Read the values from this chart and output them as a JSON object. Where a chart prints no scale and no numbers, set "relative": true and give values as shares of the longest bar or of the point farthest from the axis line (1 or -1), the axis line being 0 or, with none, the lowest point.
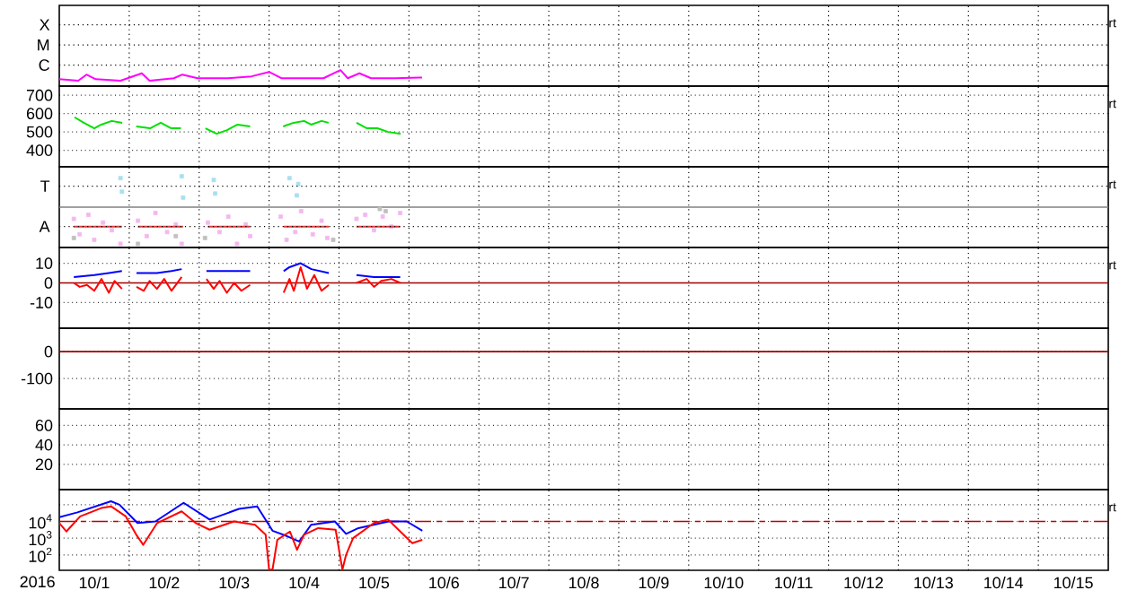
{
  "chart_data": [
    {
      "type": "line",
      "relative": true,
      "grid": true,
      "tick_labels": false,
      "annotations": [
        "X",
        "M",
        "C",
        "rt"
      ],
      "xlim": [
        "2016-10-01T00:00",
        "2016-10-16T00:00"
      ],
      "xticks": [
        {
          "value": "2016-10-02T00:00",
          "label": null
        },
        {
          "value": "2016-10-03T00:00",
          "label": null
        },
        {
          "value": "2016-10-04T00:00",
          "label": null
        },
        {
          "value": "2016-10-05T00:00",
          "label": null
        },
        {
          "value": "2016-10-06T00:00",
          "label": null
        },
        {
          "value": "2016-10-07T00:00",
          "label": null
        },
        {
          "value": "2016-10-08T00:00",
          "label": null
        },
        {
          "value": "2016-10-09T00:00",
          "label": null
        },
        {
          "value": "2016-10-10T00:00",
          "label": null
        },
        {
          "value": "2016-10-11T00:00",
          "label": null
        },
        {
          "value": "2016-10-12T00:00",
          "label": null
        },
        {
          "value": "2016-10-13T00:00",
          "label": null
        },
        {
          "value": "2016-10-14T00:00",
          "label": null
        },
        {
          "value": "2016-10-15T00:00",
          "label": null
        }
      ],
      "series": [
        {
          "color": "#ff00ff",
          "x": [
            "2016-10-01T00:00",
            "2016-10-01T06:30",
            "2016-10-01T09:20",
            "2016-10-01T12:30",
            "2016-10-01T21:00",
            "2016-10-02T04:20",
            "2016-10-02T07:00",
            "2016-10-02T15:20",
            "2016-10-02T18:15",
            "2016-10-02T23:30",
            "2016-10-03T09:50",
            "2016-10-03T18:00",
            "2016-10-04T00:00",
            "2016-10-04T04:20",
            "2016-10-04T10:20",
            "2016-10-04T18:40",
            "2016-10-05T00:30",
            "2016-10-05T03:00",
            "2016-10-05T07:00",
            "2016-10-05T11:00",
            "2016-10-05T19:00",
            "2016-10-06T03:40",
            "2016-10-06T04:30"
          ],
          "values": [
            0.43,
            0.34,
            0.72,
            0.43,
            0.34,
            0.8,
            0.34,
            0.49,
            0.72,
            0.49,
            0.49,
            0.61,
            0.89,
            0.49,
            0.49,
            0.49,
            1,
            0.49,
            0.8,
            0.49,
            0.49,
            0.54,
            0.54
          ]
        }
      ]
    },
    {
      "type": "line",
      "grid": true,
      "tick_labels": "y",
      "annotations": [
        "rt"
      ],
      "xlim": [
        "2016-10-01T00:00",
        "2016-10-16T00:00"
      ],
      "xticks": [
        {
          "value": "2016-10-02T00:00",
          "label": null
        },
        {
          "value": "2016-10-03T00:00",
          "label": null
        },
        {
          "value": "2016-10-04T00:00",
          "label": null
        },
        {
          "value": "2016-10-05T00:00",
          "label": null
        },
        {
          "value": "2016-10-06T00:00",
          "label": null
        },
        {
          "value": "2016-10-07T00:00",
          "label": null
        },
        {
          "value": "2016-10-08T00:00",
          "label": null
        },
        {
          "value": "2016-10-09T00:00",
          "label": null
        },
        {
          "value": "2016-10-10T00:00",
          "label": null
        },
        {
          "value": "2016-10-11T00:00",
          "label": null
        },
        {
          "value": "2016-10-12T00:00",
          "label": null
        },
        {
          "value": "2016-10-13T00:00",
          "label": null
        },
        {
          "value": "2016-10-14T00:00",
          "label": null
        },
        {
          "value": "2016-10-15T00:00",
          "label": null
        }
      ],
      "ylim": [
        310,
        750
      ],
      "yticks": [
        400,
        500,
        600,
        700
      ],
      "series": [
        {
          "color": "#00e000",
          "x": [
            "2016-10-01T05:15",
            "2016-10-01T08:25",
            "2016-10-01T12:00",
            "2016-10-01T14:25",
            "2016-10-01T18:00",
            "2016-10-01T21:35",
            "2016-10-02T00:00",
            "2016-10-02T02:25",
            "2016-10-02T07:10",
            "2016-10-02T10:50",
            "2016-10-02T14:25",
            "2016-10-02T17:45",
            "2016-10-02T22:00",
            "2016-10-03T02:10",
            "2016-10-03T06:00",
            "2016-10-03T09:35",
            "2016-10-03T13:10",
            "2016-10-03T17:30",
            "2016-10-04T00:00",
            "2016-10-04T04:50",
            "2016-10-04T08:25",
            "2016-10-04T12:00",
            "2016-10-04T14:25",
            "2016-10-04T18:00",
            "2016-10-04T20:25",
            "2016-10-05T02:00",
            "2016-10-05T06:00",
            "2016-10-05T09:35",
            "2016-10-05T13:10",
            "2016-10-05T16:50",
            "2016-10-05T21:10"
          ],
          "values": [
            580,
            550,
            520,
            540,
            560,
            550,
            null,
            530,
            520,
            550,
            520,
            520,
            null,
            520,
            490,
            510,
            540,
            530,
            null,
            530,
            550,
            560,
            540,
            560,
            550,
            null,
            550,
            520,
            520,
            500,
            490
          ]
        }
      ]
    },
    {
      "type": "scatter",
      "relative": true,
      "grid": true,
      "tick_labels": false,
      "annotations": [
        "T",
        "A",
        "rt"
      ],
      "xlim": [
        "2016-10-01T00:00",
        "2016-10-16T00:00"
      ],
      "xticks": [
        {
          "value": "2016-10-02T00:00",
          "label": null
        },
        {
          "value": "2016-10-03T00:00",
          "label": null
        },
        {
          "value": "2016-10-04T00:00",
          "label": null
        },
        {
          "value": "2016-10-05T00:00",
          "label": null
        },
        {
          "value": "2016-10-06T00:00",
          "label": null
        },
        {
          "value": "2016-10-07T00:00",
          "label": null
        },
        {
          "value": "2016-10-08T00:00",
          "label": null
        },
        {
          "value": "2016-10-09T00:00",
          "label": null
        },
        {
          "value": "2016-10-10T00:00",
          "label": null
        },
        {
          "value": "2016-10-11T00:00",
          "label": null
        },
        {
          "value": "2016-10-12T00:00",
          "label": null
        },
        {
          "value": "2016-10-13T00:00",
          "label": null
        },
        {
          "value": "2016-10-14T00:00",
          "label": null
        },
        {
          "value": "2016-10-15T00:00",
          "label": null
        }
      ],
      "ref_lines": [
        {
          "axis": "y",
          "value": 0,
          "color": "#808080"
        }
      ],
      "series": [
        {
          "color": "#f4b8f0",
          "x": [
            "2016-10-01T05:00",
            "2016-10-01T07:00",
            "2016-10-01T10:00",
            "2016-10-01T12:00",
            "2016-10-01T15:00",
            "2016-10-01T18:00",
            "2016-10-01T21:00",
            "2016-10-02T03:00",
            "2016-10-02T06:00",
            "2016-10-02T09:00",
            "2016-10-02T13:00",
            "2016-10-02T16:00",
            "2016-10-02T18:00",
            "2016-10-03T03:00",
            "2016-10-03T07:00",
            "2016-10-03T10:00",
            "2016-10-03T13:00",
            "2016-10-03T16:00",
            "2016-10-03T17:30",
            "2016-10-04T04:00",
            "2016-10-04T06:00",
            "2016-10-04T09:00",
            "2016-10-04T11:00",
            "2016-10-04T15:00",
            "2016-10-04T18:00",
            "2016-10-04T20:00",
            "2016-10-05T06:00",
            "2016-10-05T09:00",
            "2016-10-05T12:00",
            "2016-10-05T15:00",
            "2016-10-05T18:00",
            "2016-10-05T21:00"
          ],
          "values": [
            -0.32,
            -0.74,
            -0.21,
            -0.89,
            -0.42,
            -0.63,
            -1,
            -0.37,
            -0.79,
            -0.16,
            -0.68,
            -0.47,
            -1,
            -0.42,
            -0.68,
            -0.26,
            -1,
            -0.47,
            -0.79,
            -0.26,
            -0.89,
            -0.68,
            -0.11,
            -0.74,
            -0.37,
            -0.84,
            -0.32,
            -0.21,
            -0.63,
            -0.26,
            -0.53,
            -0.16
          ]
        },
        {
          "color": "#a8e0f0",
          "x": [
            "2016-10-01T21:00",
            "2016-10-01T21:30",
            "2016-10-02T18:00",
            "2016-10-02T18:30",
            "2016-10-03T05:00",
            "2016-10-03T05:30",
            "2016-10-04T07:00",
            "2016-10-04T09:30",
            "2016-10-04T10:00"
          ],
          "values": [
            0.79,
            0.42,
            0.84,
            0.26,
            0.74,
            0.37,
            0.79,
            0.32,
            0.63
          ]
        },
        {
          "color": "#c0c0c0",
          "x": [
            "2016-10-01T05:00",
            "2016-10-02T03:00",
            "2016-10-02T16:00",
            "2016-10-03T02:00",
            "2016-10-04T22:00",
            "2016-10-05T14:00",
            "2016-10-05T16:00"
          ],
          "values": [
            -0.84,
            -1,
            -0.79,
            -0.84,
            -0.89,
            -0.05,
            -0.11
          ]
        },
        {
          "type": "line",
          "color": "#e04040",
          "x": [
            "2016-10-01T05:00",
            "2016-10-01T21:30",
            "2016-10-02T00:00",
            "2016-10-02T03:00",
            "2016-10-02T18:30",
            "2016-10-03T00:00",
            "2016-10-03T03:00",
            "2016-10-03T17:30",
            "2016-10-04T00:00",
            "2016-10-04T05:00",
            "2016-10-04T20:30",
            "2016-10-05T02:00",
            "2016-10-05T06:00",
            "2016-10-05T21:00"
          ],
          "values": [
            -0.53,
            -0.53,
            null,
            -0.53,
            -0.53,
            null,
            -0.53,
            -0.53,
            null,
            -0.53,
            -0.53,
            null,
            -0.53,
            -0.53
          ]
        }
      ]
    },
    {
      "type": "line",
      "grid": true,
      "tick_labels": "y",
      "annotations": [
        "rt"
      ],
      "xlim": [
        "2016-10-01T00:00",
        "2016-10-16T00:00"
      ],
      "xticks": [
        {
          "value": "2016-10-02T00:00",
          "label": null
        },
        {
          "value": "2016-10-03T00:00",
          "label": null
        },
        {
          "value": "2016-10-04T00:00",
          "label": null
        },
        {
          "value": "2016-10-05T00:00",
          "label": null
        },
        {
          "value": "2016-10-06T00:00",
          "label": null
        },
        {
          "value": "2016-10-07T00:00",
          "label": null
        },
        {
          "value": "2016-10-08T00:00",
          "label": null
        },
        {
          "value": "2016-10-09T00:00",
          "label": null
        },
        {
          "value": "2016-10-10T00:00",
          "label": null
        },
        {
          "value": "2016-10-11T00:00",
          "label": null
        },
        {
          "value": "2016-10-12T00:00",
          "label": null
        },
        {
          "value": "2016-10-13T00:00",
          "label": null
        },
        {
          "value": "2016-10-14T00:00",
          "label": null
        },
        {
          "value": "2016-10-15T00:00",
          "label": null
        }
      ],
      "ylim": [
        -23,
        18
      ],
      "yticks": [
        -10,
        0,
        10
      ],
      "ref_lines": [
        {
          "axis": "y",
          "value": 0,
          "color": "#a00000"
        }
      ],
      "series": [
        {
          "color": "#0000ff",
          "x": [
            "2016-10-01T05:00",
            "2016-10-01T12:00",
            "2016-10-01T17:00",
            "2016-10-01T21:30",
            "2016-10-02T00:00",
            "2016-10-02T02:30",
            "2016-10-02T09:30",
            "2016-10-02T14:30",
            "2016-10-02T18:00",
            "2016-10-02T22:00",
            "2016-10-03T02:30",
            "2016-10-03T09:30",
            "2016-10-03T17:30",
            "2016-10-04T00:00",
            "2016-10-04T05:00",
            "2016-10-04T07:00",
            "2016-10-04T10:50",
            "2016-10-04T14:30",
            "2016-10-04T20:30",
            "2016-10-05T02:00",
            "2016-10-05T06:00",
            "2016-10-05T12:00",
            "2016-10-05T21:00"
          ],
          "values": [
            3,
            4,
            5,
            6,
            null,
            5,
            5,
            6,
            7,
            null,
            6,
            6,
            6,
            null,
            6,
            8,
            10,
            7,
            5,
            null,
            4,
            3,
            3
          ]
        },
        {
          "color": "#ff0000",
          "x": [
            "2016-10-01T05:00",
            "2016-10-01T07:00",
            "2016-10-01T09:30",
            "2016-10-01T12:00",
            "2016-10-01T14:30",
            "2016-10-01T17:00",
            "2016-10-01T19:00",
            "2016-10-01T21:30",
            "2016-10-02T00:00",
            "2016-10-02T02:30",
            "2016-10-02T05:00",
            "2016-10-02T07:00",
            "2016-10-02T09:30",
            "2016-10-02T12:00",
            "2016-10-02T14:30",
            "2016-10-02T18:00",
            "2016-10-02T22:00",
            "2016-10-03T02:30",
            "2016-10-03T05:00",
            "2016-10-03T07:00",
            "2016-10-03T09:30",
            "2016-10-03T12:00",
            "2016-10-03T14:30",
            "2016-10-03T17:30",
            "2016-10-04T00:00",
            "2016-10-04T05:00",
            "2016-10-04T07:00",
            "2016-10-04T08:30",
            "2016-10-04T10:50",
            "2016-10-04T13:00",
            "2016-10-04T15:30",
            "2016-10-04T18:00",
            "2016-10-04T20:30",
            "2016-10-05T02:00",
            "2016-10-05T06:00",
            "2016-10-05T09:30",
            "2016-10-05T12:00",
            "2016-10-05T14:30",
            "2016-10-05T18:00",
            "2016-10-05T21:00"
          ],
          "values": [
            0,
            -2,
            -1,
            -4,
            2,
            -5,
            1,
            -3,
            null,
            -2,
            -4,
            1,
            -3,
            2,
            -4,
            3,
            null,
            2,
            -3,
            1,
            -5,
            0,
            -4,
            -1,
            null,
            -5,
            2,
            -4,
            8,
            -3,
            4,
            -4,
            -1,
            null,
            0,
            2,
            -2,
            1,
            2,
            0
          ]
        }
      ]
    },
    {
      "type": "line",
      "grid": true,
      "tick_labels": "y",
      "xlim": [
        "2016-10-01T00:00",
        "2016-10-16T00:00"
      ],
      "xticks": [
        {
          "value": "2016-10-02T00:00",
          "label": null
        },
        {
          "value": "2016-10-03T00:00",
          "label": null
        },
        {
          "value": "2016-10-04T00:00",
          "label": null
        },
        {
          "value": "2016-10-05T00:00",
          "label": null
        },
        {
          "value": "2016-10-06T00:00",
          "label": null
        },
        {
          "value": "2016-10-07T00:00",
          "label": null
        },
        {
          "value": "2016-10-08T00:00",
          "label": null
        },
        {
          "value": "2016-10-09T00:00",
          "label": null
        },
        {
          "value": "2016-10-10T00:00",
          "label": null
        },
        {
          "value": "2016-10-11T00:00",
          "label": null
        },
        {
          "value": "2016-10-12T00:00",
          "label": null
        },
        {
          "value": "2016-10-13T00:00",
          "label": null
        },
        {
          "value": "2016-10-14T00:00",
          "label": null
        },
        {
          "value": "2016-10-15T00:00",
          "label": null
        }
      ],
      "ylim": [
        -213,
        87
      ],
      "yticks": [
        -100,
        0
      ],
      "ref_lines": [
        {
          "axis": "y",
          "value": 0,
          "color": "#a00000"
        }
      ]
    },
    {
      "type": "line",
      "grid": true,
      "tick_labels": "y",
      "xlim": [
        "2016-10-01T00:00",
        "2016-10-16T00:00"
      ],
      "xticks": [
        {
          "value": "2016-10-02T00:00",
          "label": null
        },
        {
          "value": "2016-10-03T00:00",
          "label": null
        },
        {
          "value": "2016-10-04T00:00",
          "label": null
        },
        {
          "value": "2016-10-05T00:00",
          "label": null
        },
        {
          "value": "2016-10-06T00:00",
          "label": null
        },
        {
          "value": "2016-10-07T00:00",
          "label": null
        },
        {
          "value": "2016-10-08T00:00",
          "label": null
        },
        {
          "value": "2016-10-09T00:00",
          "label": null
        },
        {
          "value": "2016-10-10T00:00",
          "label": null
        },
        {
          "value": "2016-10-11T00:00",
          "label": null
        },
        {
          "value": "2016-10-12T00:00",
          "label": null
        },
        {
          "value": "2016-10-13T00:00",
          "label": null
        },
        {
          "value": "2016-10-14T00:00",
          "label": null
        },
        {
          "value": "2016-10-15T00:00",
          "label": null
        }
      ],
      "ylim": [
        -6,
        77
      ],
      "yticks": [
        20,
        40,
        60
      ]
    },
    {
      "type": "line",
      "log": "y",
      "grid": true,
      "annotations": [
        "rt"
      ],
      "xlabel": "2016",
      "xlim": [
        "2016-10-01T00:00",
        "2016-10-16T00:00"
      ],
      "xticks": [
        {
          "value": "2016-10-01T12:00",
          "label": "10/1"
        },
        {
          "value": "2016-10-02T00:00",
          "label": null
        },
        {
          "value": "2016-10-02T12:00",
          "label": "10/2"
        },
        {
          "value": "2016-10-03T00:00",
          "label": null
        },
        {
          "value": "2016-10-03T12:00",
          "label": "10/3"
        },
        {
          "value": "2016-10-04T00:00",
          "label": null
        },
        {
          "value": "2016-10-04T12:00",
          "label": "10/4"
        },
        {
          "value": "2016-10-05T00:00",
          "label": null
        },
        {
          "value": "2016-10-05T12:00",
          "label": "10/5"
        },
        {
          "value": "2016-10-06T00:00",
          "label": null
        },
        {
          "value": "2016-10-06T12:00",
          "label": "10/6"
        },
        {
          "value": "2016-10-07T00:00",
          "label": null
        },
        {
          "value": "2016-10-07T12:00",
          "label": "10/7"
        },
        {
          "value": "2016-10-08T00:00",
          "label": null
        },
        {
          "value": "2016-10-08T12:00",
          "label": "10/8"
        },
        {
          "value": "2016-10-09T00:00",
          "label": null
        },
        {
          "value": "2016-10-09T12:00",
          "label": "10/9"
        },
        {
          "value": "2016-10-10T00:00",
          "label": null
        },
        {
          "value": "2016-10-10T12:00",
          "label": "10/10"
        },
        {
          "value": "2016-10-11T00:00",
          "label": null
        },
        {
          "value": "2016-10-11T12:00",
          "label": "10/11"
        },
        {
          "value": "2016-10-12T00:00",
          "label": null
        },
        {
          "value": "2016-10-12T12:00",
          "label": "10/12"
        },
        {
          "value": "2016-10-13T00:00",
          "label": null
        },
        {
          "value": "2016-10-13T12:00",
          "label": "10/13"
        },
        {
          "value": "2016-10-14T00:00",
          "label": null
        },
        {
          "value": "2016-10-14T12:00",
          "label": "10/14"
        },
        {
          "value": "2016-10-15T00:00",
          "label": null
        },
        {
          "value": "2016-10-15T12:00",
          "label": "10/15"
        }
      ],
      "ylim": [
        12,
        800000
      ],
      "yticks": [
        {
          "value": 100,
          "label": "10$^{2}$"
        },
        {
          "value": 1000,
          "label": "10$^{3}$"
        },
        {
          "value": 10000,
          "label": "10$^{4}$"
        },
        {
          "value": 100000,
          "label": null
        }
      ],
      "ref_lines": [
        {
          "axis": "y",
          "value": 10000,
          "color": "#c00000",
          "line_style": "dashed"
        }
      ],
      "series": [
        {
          "color": "#0000ff",
          "x": [
            "2016-10-01T00:00",
            "2016-10-01T06:15",
            "2016-10-01T17:45",
            "2016-10-01T20:40",
            "2016-10-02T02:50",
            "2016-10-02T09:00",
            "2016-10-02T18:40",
            "2016-10-03T03:35",
            "2016-10-03T13:40",
            "2016-10-03T19:55",
            "2016-10-04T01:10",
            "2016-10-04T06:15",
            "2016-10-04T10:20",
            "2016-10-04T14:25",
            "2016-10-04T22:35",
            "2016-10-05T02:25",
            "2016-10-05T06:40",
            "2016-10-05T17:00",
            "2016-10-05T23:15",
            "2016-10-06T04:35"
          ],
          "values": [
            18000,
            35000,
            160000,
            100000,
            8000,
            10000,
            130000,
            13000,
            56000,
            80000,
            2800,
            1300,
            630,
            6300,
            10000,
            1800,
            4000,
            10000,
            10000,
            2800
          ]
        },
        {
          "color": "#ff0000",
          "x": [
            "2016-10-01T00:00",
            "2016-10-01T02:25",
            "2016-10-01T07:10",
            "2016-10-01T14:25",
            "2016-10-01T17:45",
            "2016-10-01T22:50",
            "2016-10-02T02:25",
            "2016-10-02T04:50",
            "2016-10-02T09:35",
            "2016-10-02T18:00",
            "2016-10-02T22:50",
            "2016-10-03T03:35",
            "2016-10-03T12:00",
            "2016-10-03T19:10",
            "2016-10-03T22:50",
            "2016-10-04T00:00",
            "2016-10-04T01:10",
            "2016-10-04T02:50",
            "2016-10-04T07:10",
            "2016-10-04T09:35",
            "2016-10-04T12:00",
            "2016-10-04T16:50",
            "2016-10-04T22:50",
            "2016-10-05T01:10",
            "2016-10-05T02:25",
            "2016-10-05T04:50",
            "2016-10-05T12:00",
            "2016-10-05T16:50",
            "2016-10-05T21:35",
            "2016-10-06T01:10",
            "2016-10-06T04:35"
          ],
          "values": [
            8000,
            2500,
            20000,
            63000,
            80000,
            20000,
            1600,
            400,
            8000,
            40000,
            8000,
            3200,
            10000,
            6300,
            1600,
            13,
            13,
            800,
            2500,
            200,
            1600,
            4000,
            3200,
            13,
            100,
            1000,
            8000,
            13000,
            2000,
            500,
            800
          ]
        }
      ]
    }
  ]
}
